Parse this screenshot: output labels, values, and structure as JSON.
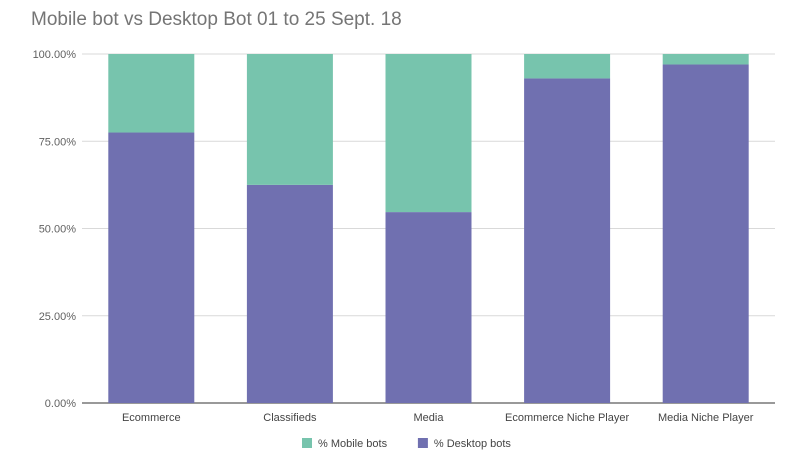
{
  "chart_data": {
    "type": "bar",
    "stacked": true,
    "title": "Mobile bot vs Desktop Bot 01 to 25 Sept. 18",
    "xlabel": "",
    "ylabel": "",
    "ylim": [
      0,
      100
    ],
    "yticks": [
      "0.00%",
      "25.00%",
      "50.00%",
      "75.00%",
      "100.00%"
    ],
    "categories": [
      "Ecommerce",
      "Classifieds",
      "Media",
      "Ecommerce Niche Player",
      "Media Niche Player"
    ],
    "series": [
      {
        "name": "% Desktop bots",
        "color": "#7070b0",
        "values": [
          77.5,
          62.5,
          54.7,
          93.0,
          97.0
        ]
      },
      {
        "name": "% Mobile bots",
        "color": "#77c4ad",
        "values": [
          22.5,
          37.5,
          45.3,
          7.0,
          3.0
        ]
      }
    ],
    "legend": {
      "position": "bottom",
      "order": [
        "% Mobile bots",
        "% Desktop bots"
      ]
    },
    "grid": true
  }
}
